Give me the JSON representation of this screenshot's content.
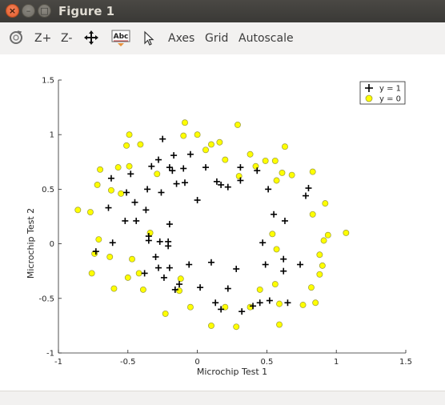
{
  "window": {
    "title": "Figure 1",
    "close_glyph": "×",
    "minimize_glyph": "–",
    "maximize_glyph": "□"
  },
  "toolbar": {
    "zoom_in_label": "Z+",
    "zoom_out_label": "Z-",
    "axes_label": "Axes",
    "grid_label": "Grid",
    "autoscale_label": "Autoscale",
    "icons": [
      "rotate-icon",
      "pan-icon",
      "text-insert-icon",
      "select-pointer-icon"
    ],
    "text_icon_label": "Abc"
  },
  "chart_data": {
    "type": "scatter",
    "title": "",
    "xlabel": "Microchip Test 1",
    "ylabel": "Microchip Test 2",
    "xlim": [
      -1,
      1.5
    ],
    "ylim": [
      -1,
      1.5
    ],
    "xticks": [
      "-1",
      "-0.5",
      "0",
      "0.5",
      "1",
      "1.5"
    ],
    "yticks": [
      "-1",
      "-0.5",
      "0",
      "0.5",
      "1",
      "1.5"
    ],
    "grid": false,
    "legend_position": "top-right",
    "series": [
      {
        "name": "y = 1",
        "marker": "plus",
        "color": "#000000",
        "points": [
          [
            -0.25,
            0.96
          ],
          [
            -0.28,
            0.77
          ],
          [
            -0.2,
            0.7
          ],
          [
            -0.18,
            0.67
          ],
          [
            -0.17,
            0.81
          ],
          [
            -0.1,
            0.69
          ],
          [
            -0.05,
            0.82
          ],
          [
            -0.15,
            0.55
          ],
          [
            -0.09,
            0.56
          ],
          [
            0.06,
            0.7
          ],
          [
            -0.26,
            0.47
          ],
          [
            -0.33,
            0.71
          ],
          [
            -0.48,
            0.64
          ],
          [
            -0.51,
            0.47
          ],
          [
            -0.62,
            0.6
          ],
          [
            -0.36,
            0.5
          ],
          [
            -0.37,
            0.31
          ],
          [
            -0.45,
            0.38
          ],
          [
            -0.64,
            0.33
          ],
          [
            -0.52,
            0.21
          ],
          [
            -0.44,
            0.21
          ],
          [
            -0.61,
            0.01
          ],
          [
            -0.73,
            -0.07
          ],
          [
            -0.35,
            0.03
          ],
          [
            -0.27,
            0.02
          ],
          [
            -0.2,
            0.18
          ],
          [
            -0.21,
            -0.02
          ],
          [
            0.0,
            0.4
          ],
          [
            0.14,
            0.57
          ],
          [
            0.17,
            0.54
          ],
          [
            0.22,
            0.52
          ],
          [
            0.31,
            0.58
          ],
          [
            0.31,
            0.7
          ],
          [
            0.43,
            0.67
          ],
          [
            0.51,
            0.5
          ],
          [
            0.55,
            0.27
          ],
          [
            0.63,
            0.21
          ],
          [
            0.78,
            0.44
          ],
          [
            0.8,
            0.51
          ],
          [
            0.47,
            0.01
          ],
          [
            0.62,
            -0.14
          ],
          [
            0.62,
            -0.25
          ],
          [
            0.74,
            -0.19
          ],
          [
            0.49,
            -0.19
          ],
          [
            0.28,
            -0.23
          ],
          [
            0.1,
            -0.17
          ],
          [
            -0.16,
            -0.42
          ],
          [
            -0.2,
            -0.22
          ],
          [
            -0.06,
            -0.19
          ],
          [
            -0.3,
            -0.12
          ],
          [
            -0.28,
            -0.22
          ],
          [
            -0.38,
            -0.27
          ],
          [
            -0.24,
            -0.31
          ],
          [
            -0.13,
            -0.37
          ],
          [
            0.02,
            -0.4
          ],
          [
            0.22,
            -0.41
          ],
          [
            0.13,
            -0.54
          ],
          [
            0.17,
            -0.6
          ],
          [
            0.32,
            -0.62
          ],
          [
            0.4,
            -0.57
          ],
          [
            0.45,
            -0.54
          ],
          [
            0.52,
            -0.52
          ],
          [
            0.65,
            -0.54
          ],
          [
            -0.21,
            0.02
          ],
          [
            -0.35,
            0.07
          ]
        ]
      },
      {
        "name": "y = 0",
        "marker": "circle",
        "color": "#ffff00",
        "points": [
          [
            -0.09,
            1.11
          ],
          [
            -0.49,
            1.0
          ],
          [
            -0.51,
            0.9
          ],
          [
            -0.41,
            0.91
          ],
          [
            -0.1,
            0.99
          ],
          [
            0.0,
            1.0
          ],
          [
            0.1,
            0.91
          ],
          [
            0.16,
            0.93
          ],
          [
            0.29,
            1.09
          ],
          [
            0.06,
            0.86
          ],
          [
            0.2,
            0.77
          ],
          [
            0.38,
            0.82
          ],
          [
            0.42,
            0.71
          ],
          [
            0.49,
            0.76
          ],
          [
            0.56,
            0.76
          ],
          [
            0.61,
            0.65
          ],
          [
            0.68,
            0.63
          ],
          [
            0.63,
            0.89
          ],
          [
            0.57,
            0.58
          ],
          [
            0.83,
            0.66
          ],
          [
            -0.7,
            0.68
          ],
          [
            -0.72,
            0.54
          ],
          [
            -0.62,
            0.49
          ],
          [
            -0.55,
            0.46
          ],
          [
            -0.57,
            0.7
          ],
          [
            -0.49,
            0.71
          ],
          [
            -0.29,
            0.64
          ],
          [
            -0.77,
            0.29
          ],
          [
            -0.86,
            0.31
          ],
          [
            -0.71,
            0.04
          ],
          [
            -0.74,
            -0.09
          ],
          [
            -0.76,
            -0.27
          ],
          [
            -0.63,
            -0.12
          ],
          [
            -0.47,
            -0.14
          ],
          [
            -0.42,
            -0.27
          ],
          [
            -0.5,
            -0.31
          ],
          [
            -0.6,
            -0.41
          ],
          [
            -0.34,
            0.1
          ],
          [
            -0.39,
            -0.42
          ],
          [
            -0.12,
            -0.32
          ],
          [
            -0.13,
            -0.43
          ],
          [
            -0.23,
            -0.64
          ],
          [
            -0.05,
            -0.58
          ],
          [
            0.1,
            -0.75
          ],
          [
            0.28,
            -0.76
          ],
          [
            0.2,
            -0.58
          ],
          [
            0.38,
            -0.58
          ],
          [
            0.45,
            -0.42
          ],
          [
            0.56,
            -0.37
          ],
          [
            0.59,
            -0.74
          ],
          [
            0.59,
            -0.55
          ],
          [
            0.76,
            -0.56
          ],
          [
            0.85,
            -0.54
          ],
          [
            0.82,
            -0.4
          ],
          [
            0.88,
            -0.28
          ],
          [
            0.9,
            -0.2
          ],
          [
            0.88,
            -0.1
          ],
          [
            0.91,
            0.03
          ],
          [
            0.94,
            0.08
          ],
          [
            1.07,
            0.1
          ],
          [
            0.92,
            0.37
          ],
          [
            0.83,
            0.27
          ],
          [
            0.54,
            0.09
          ],
          [
            0.57,
            -0.05
          ],
          [
            0.3,
            0.62
          ]
        ]
      }
    ]
  }
}
